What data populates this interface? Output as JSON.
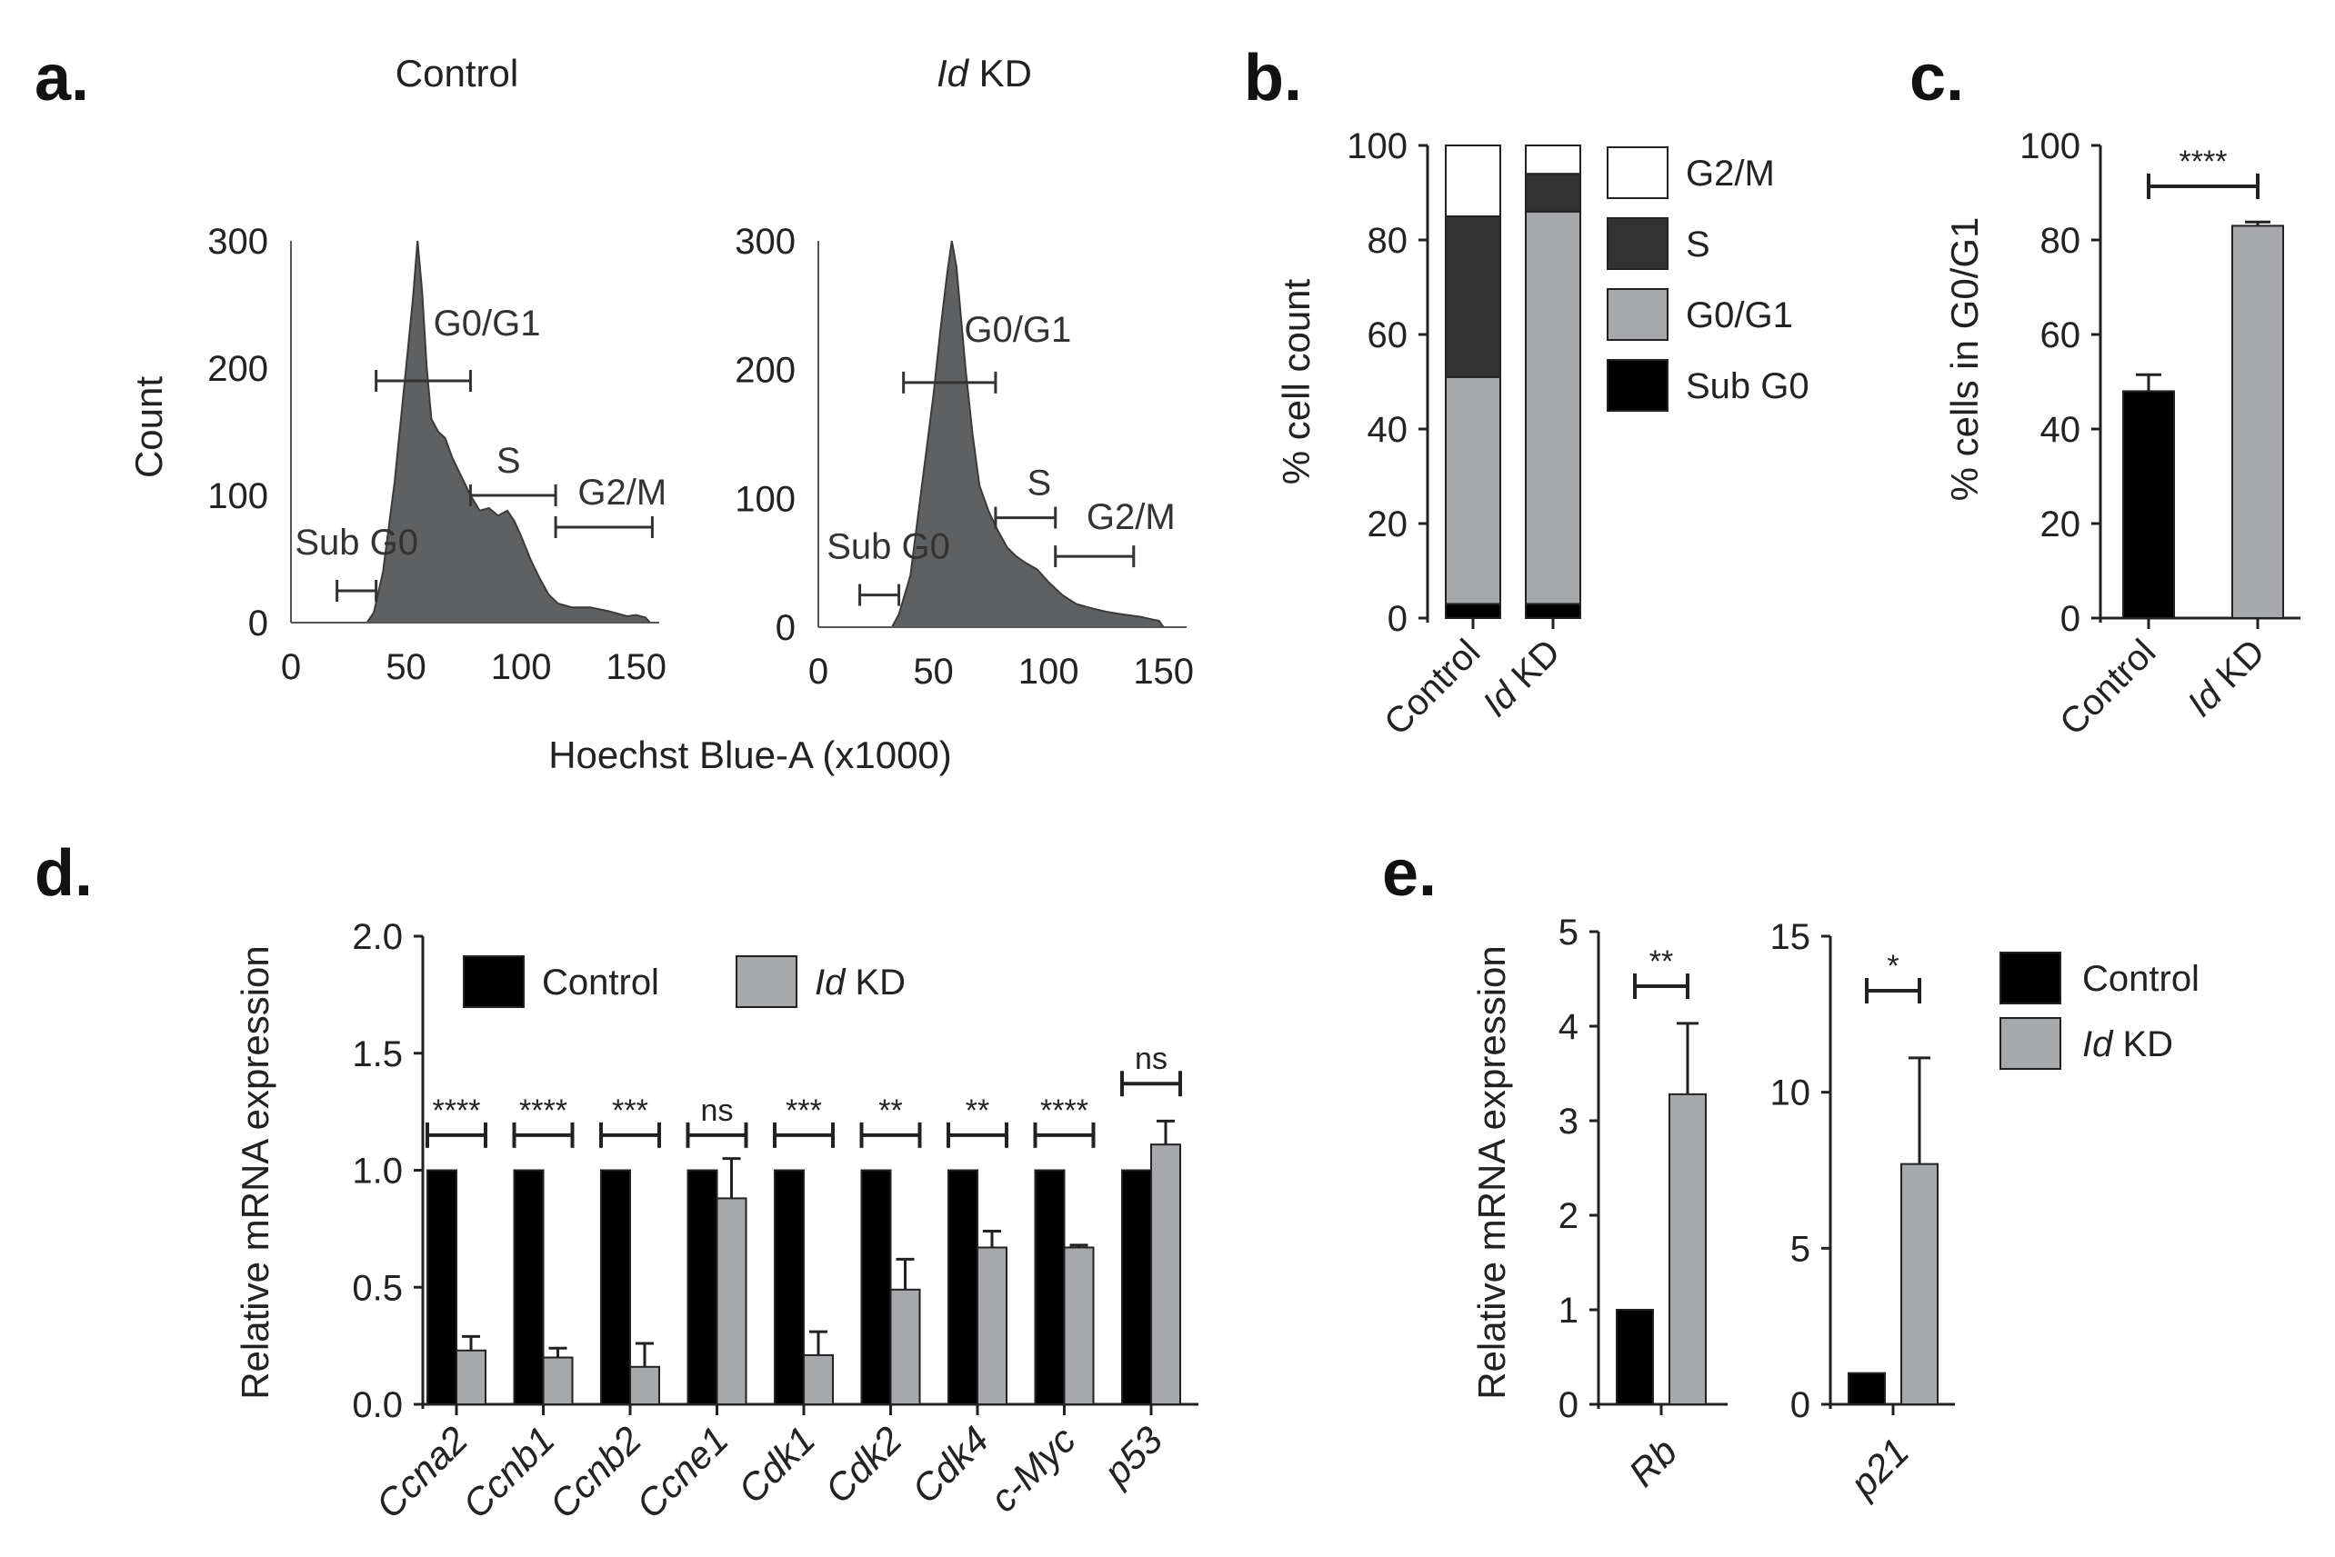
{
  "panels": {
    "a": {
      "letter": "a.",
      "titles": [
        "Control",
        "KD"
      ],
      "title_prefix_italic": "Id",
      "xlabel": "Hoechst Blue-A (x1000)",
      "ylabel": "Count",
      "x_ticks": [
        "0",
        "50",
        "100",
        "150"
      ],
      "y_ticks": [
        "0",
        "100",
        "200",
        "300"
      ],
      "gate_labels": [
        "Sub G0",
        "G0/G1",
        "S",
        "G2/M"
      ]
    },
    "b": {
      "letter": "b."
    },
    "c": {
      "letter": "c."
    },
    "d": {
      "letter": "d."
    },
    "e": {
      "letter": "e."
    }
  },
  "chart_data": [
    {
      "id": "a_control",
      "type": "area",
      "title": "Control",
      "xlabel": "Hoechst Blue-A (x1000)",
      "ylabel": "Count",
      "xlim": [
        0,
        160
      ],
      "ylim": [
        0,
        300
      ],
      "x": [
        33,
        36,
        40,
        45,
        50,
        53,
        55,
        57,
        59,
        61,
        64,
        67,
        70,
        74,
        78,
        82,
        86,
        90,
        94,
        97,
        100,
        104,
        108,
        112,
        116,
        122,
        130,
        138,
        146,
        150,
        154,
        156
      ],
      "y": [
        0,
        8,
        40,
        110,
        200,
        255,
        300,
        260,
        200,
        160,
        150,
        145,
        130,
        115,
        100,
        88,
        90,
        84,
        88,
        80,
        68,
        50,
        35,
        22,
        15,
        12,
        12,
        9,
        5,
        6,
        4,
        0
      ],
      "gates": [
        {
          "name": "Sub G0",
          "x_range": [
            20,
            37
          ]
        },
        {
          "name": "G0/G1",
          "x_range": [
            37,
            78
          ]
        },
        {
          "name": "S",
          "x_range": [
            78,
            115
          ]
        },
        {
          "name": "G2/M",
          "x_range": [
            115,
            157
          ]
        }
      ]
    },
    {
      "id": "a_idkd",
      "type": "area",
      "title": "Id KD",
      "xlabel": "Hoechst Blue-A (x1000)",
      "ylabel": "Count",
      "xlim": [
        0,
        160
      ],
      "ylim": [
        0,
        300
      ],
      "x": [
        32,
        35,
        40,
        45,
        50,
        53,
        56,
        58,
        60,
        62,
        64,
        67,
        70,
        74,
        78,
        82,
        86,
        90,
        95,
        100,
        106,
        112,
        118,
        125,
        132,
        140,
        145,
        148,
        150
      ],
      "y": [
        0,
        10,
        40,
        110,
        180,
        230,
        275,
        300,
        280,
        240,
        200,
        150,
        110,
        90,
        75,
        62,
        55,
        50,
        45,
        35,
        25,
        18,
        15,
        12,
        10,
        8,
        6,
        5,
        0
      ],
      "gates": [
        {
          "name": "Sub G0",
          "x_range": [
            18,
            35
          ]
        },
        {
          "name": "G0/G1",
          "x_range": [
            37,
            77
          ]
        },
        {
          "name": "S",
          "x_range": [
            77,
            103
          ]
        },
        {
          "name": "G2/M",
          "x_range": [
            103,
            137
          ]
        }
      ]
    },
    {
      "id": "b",
      "type": "bar",
      "stacked": true,
      "ylabel": "% cell count",
      "ylim": [
        0,
        100
      ],
      "y_ticks": [
        "0",
        "20",
        "40",
        "60",
        "80",
        "100"
      ],
      "categories": [
        "Control",
        "KD"
      ],
      "category_italic_prefix": [
        "",
        "Id"
      ],
      "series": [
        {
          "name": "Sub G0",
          "color": "#000000",
          "values": [
            3,
            3
          ]
        },
        {
          "name": "G0/G1",
          "color": "#a7a8ab",
          "values": [
            48,
            83
          ]
        },
        {
          "name": "S",
          "color": "#333333",
          "values": [
            34,
            8
          ]
        },
        {
          "name": "G2/M",
          "color": "#ffffff",
          "values": [
            15,
            6
          ]
        }
      ],
      "legend_order": [
        "G2/M",
        "S",
        "G0/G1",
        "Sub G0"
      ]
    },
    {
      "id": "c",
      "type": "bar",
      "ylabel": "% cells in G0/G1",
      "ylim": [
        0,
        100
      ],
      "y_ticks": [
        "0",
        "20",
        "40",
        "60",
        "80",
        "100"
      ],
      "categories": [
        "Control",
        "KD"
      ],
      "category_italic_prefix": [
        "",
        "Id"
      ],
      "values": [
        48,
        83
      ],
      "errors": [
        3.5,
        0.8
      ],
      "colors": [
        "#000000",
        "#a7a8ab"
      ],
      "significance": "****"
    },
    {
      "id": "d",
      "type": "bar",
      "ylabel": "Relative mRNA expression",
      "ylim": [
        0,
        2.0
      ],
      "y_ticks": [
        "0.0",
        "0.5",
        "1.0",
        "1.5",
        "2.0"
      ],
      "categories": [
        "Ccna2",
        "Ccnb1",
        "Ccnb2",
        "Ccne1",
        "Cdk1",
        "Cdk2",
        "Cdk4",
        "c-Myc",
        "p53"
      ],
      "series": [
        {
          "name": "Control",
          "color": "#000000",
          "values": [
            1,
            1,
            1,
            1,
            1,
            1,
            1,
            1,
            1
          ],
          "errors": [
            0,
            0,
            0,
            0,
            0,
            0,
            0,
            0,
            0
          ]
        },
        {
          "name": "KD",
          "italic_prefix": "Id",
          "color": "#a7a8ab",
          "values": [
            0.23,
            0.2,
            0.16,
            0.88,
            0.21,
            0.49,
            0.67,
            0.67,
            1.11
          ],
          "errors": [
            0.06,
            0.04,
            0.1,
            0.17,
            0.1,
            0.13,
            0.07,
            0.01,
            0.1
          ]
        }
      ],
      "significance": [
        "****",
        "****",
        "***",
        "ns",
        "***",
        "**",
        "**",
        "****",
        "ns"
      ]
    },
    {
      "id": "e_rb",
      "type": "bar",
      "ylabel": "Relative mRNA expression",
      "ylim": [
        0,
        5
      ],
      "y_ticks": [
        "0",
        "1",
        "2",
        "3",
        "4",
        "5"
      ],
      "categories": [
        "Rb"
      ],
      "series": [
        {
          "name": "Control",
          "color": "#000000",
          "values": [
            1
          ],
          "errors": [
            0
          ]
        },
        {
          "name": "KD",
          "italic_prefix": "Id",
          "color": "#a7a8ab",
          "values": [
            3.28
          ],
          "errors": [
            0.75
          ]
        }
      ],
      "significance": [
        "**"
      ]
    },
    {
      "id": "e_p21",
      "type": "bar",
      "ylim": [
        0,
        15
      ],
      "y_ticks": [
        "0",
        "5",
        "10",
        "15"
      ],
      "categories": [
        "p21"
      ],
      "series": [
        {
          "name": "Control",
          "color": "#000000",
          "values": [
            1
          ],
          "errors": [
            0
          ]
        },
        {
          "name": "KD",
          "italic_prefix": "Id",
          "color": "#a7a8ab",
          "values": [
            7.7
          ],
          "errors": [
            3.4
          ]
        }
      ],
      "significance": [
        "*"
      ]
    }
  ]
}
